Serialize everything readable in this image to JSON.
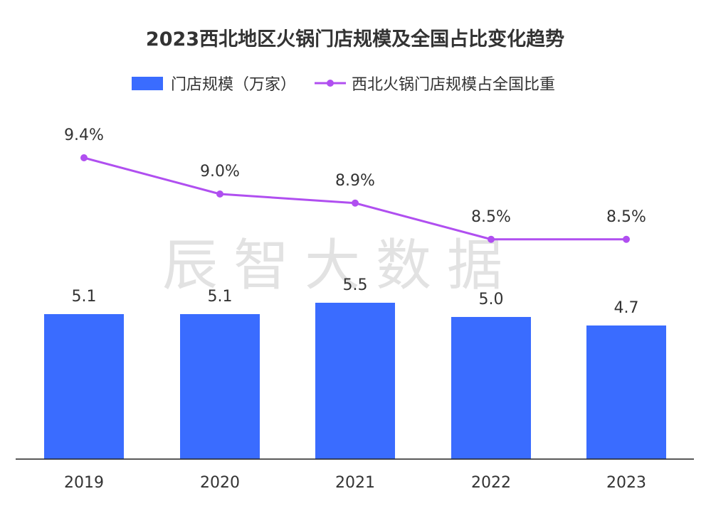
{
  "chart_data": {
    "type": "bar",
    "title": "2023西北地区火锅门店规模及全国占比变化趋势",
    "categories": [
      "2019",
      "2020",
      "2021",
      "2022",
      "2023"
    ],
    "series": [
      {
        "name": "门店规模（万家）",
        "type": "bar",
        "values": [
          5.1,
          5.1,
          5.5,
          5.0,
          4.7
        ],
        "labels": [
          "5.1",
          "5.1",
          "5.5",
          "5.0",
          "4.7"
        ],
        "color": "#3a6cff"
      },
      {
        "name": "西北火锅门店规模占全国比重",
        "type": "line",
        "values": [
          9.4,
          9.0,
          8.9,
          8.5,
          8.5
        ],
        "labels": [
          "9.4%",
          "9.0%",
          "8.9%",
          "8.5%",
          "8.5%"
        ],
        "color": "#b04ff0"
      }
    ],
    "legend": "top-center",
    "grid": false
  },
  "watermark": "辰智大数据"
}
